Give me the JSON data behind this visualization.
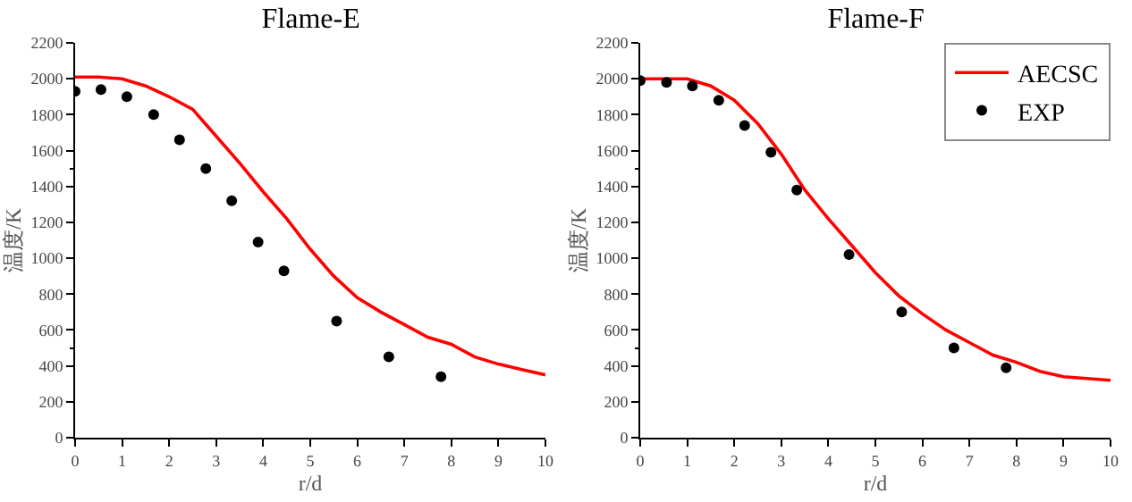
{
  "chart_data": [
    {
      "type": "line",
      "title": "Flame-E",
      "xlabel": "r/d",
      "ylabel": "温度/K",
      "xlim": [
        0,
        10
      ],
      "xticks": [
        0,
        1,
        2,
        3,
        4,
        5,
        6,
        7,
        8,
        9,
        10
      ],
      "ylim": [
        0,
        2200
      ],
      "yticks": [
        0,
        200,
        400,
        600,
        800,
        1000,
        1200,
        1400,
        1600,
        1800,
        2000,
        2200
      ],
      "grid": false,
      "legend": false,
      "series": [
        {
          "color": "#ff0000",
          "x": [
            0,
            0.5,
            1,
            1.5,
            2,
            2.5,
            3,
            3.5,
            4,
            4.5,
            5,
            5.5,
            6,
            6.5,
            7,
            7.5,
            8,
            8.5,
            9,
            9.5,
            10
          ],
          "values": [
            2010,
            2010,
            2000,
            1960,
            1900,
            1830,
            1680,
            1530,
            1370,
            1220,
            1050,
            900,
            780,
            700,
            630,
            560,
            520,
            450,
            410,
            380,
            350
          ]
        },
        {
          "type": "scatter",
          "color": "#000000",
          "marker": "circle",
          "x": [
            0,
            0.55,
            1.1,
            1.67,
            2.22,
            2.78,
            3.33,
            3.89,
            4.44,
            5.56,
            6.67,
            7.78
          ],
          "values": [
            1930,
            1940,
            1900,
            1800,
            1660,
            1500,
            1320,
            1090,
            930,
            650,
            450,
            340
          ]
        }
      ]
    },
    {
      "type": "line",
      "title": "Flame-F",
      "xlabel": "r/d",
      "ylabel": "温度/K",
      "xlim": [
        0,
        10
      ],
      "xticks": [
        0,
        1,
        2,
        3,
        4,
        5,
        6,
        7,
        8,
        9,
        10
      ],
      "ylim": [
        0,
        2200
      ],
      "yticks": [
        0,
        200,
        400,
        600,
        800,
        1000,
        1200,
        1400,
        1600,
        1800,
        2000,
        2200
      ],
      "grid": false,
      "legend": "top right",
      "series": [
        {
          "name": "AECSC",
          "color": "#ff0000",
          "x": [
            0,
            0.5,
            1,
            1.5,
            2,
            2.5,
            3,
            3.5,
            4,
            4.5,
            5,
            5.5,
            6,
            6.5,
            7,
            7.5,
            8,
            8.5,
            9,
            9.5,
            10
          ],
          "values": [
            2000,
            2000,
            2000,
            1960,
            1880,
            1750,
            1580,
            1380,
            1220,
            1070,
            920,
            790,
            690,
            600,
            530,
            460,
            420,
            370,
            340,
            330,
            320
          ]
        },
        {
          "type": "scatter",
          "name": "EXP",
          "color": "#000000",
          "marker": "circle",
          "x": [
            0,
            0.56,
            1.11,
            1.67,
            2.22,
            2.78,
            3.33,
            4.44,
            5.56,
            6.67,
            7.78
          ],
          "values": [
            1990,
            1980,
            1960,
            1880,
            1740,
            1590,
            1380,
            1020,
            700,
            500,
            390
          ]
        }
      ]
    }
  ]
}
